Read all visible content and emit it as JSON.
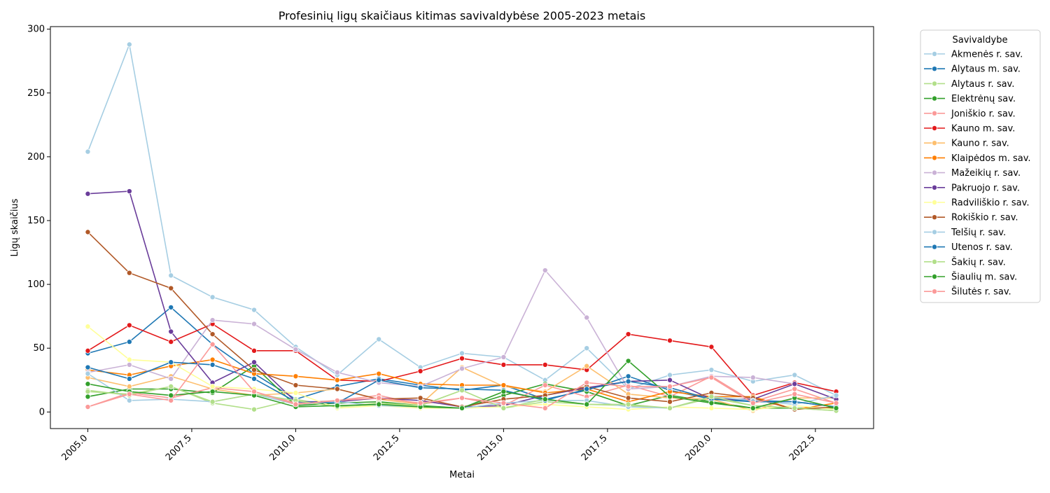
{
  "chart_data": {
    "type": "line",
    "title": "Profesinių ligų skaičiaus kitimas savivaldybėse 2005-2023 metais",
    "xlabel": "Metai",
    "ylabel": "Ligų skaičius",
    "xlim": [
      2004.1,
      2023.9
    ],
    "ylim": [
      -13,
      302
    ],
    "xticks": [
      2005.0,
      2007.5,
      2010.0,
      2012.5,
      2015.0,
      2017.5,
      2020.0,
      2022.5
    ],
    "xtick_labels": [
      "2005.0",
      "2007.5",
      "2010.0",
      "2012.5",
      "2015.0",
      "2017.5",
      "2020.0",
      "2022.5"
    ],
    "yticks": [
      0,
      50,
      100,
      150,
      200,
      250,
      300
    ],
    "ytick_labels": [
      "0",
      "50",
      "100",
      "150",
      "200",
      "250",
      "300"
    ],
    "grid": false,
    "legend": {
      "title": "Savivaldybe",
      "placement": "outside-top-right"
    },
    "x": [
      2005,
      2006,
      2007,
      2008,
      2009,
      2010,
      2011,
      2012,
      2013,
      2014,
      2015,
      2016,
      2017,
      2018,
      2019,
      2020,
      2021,
      2022,
      2023
    ],
    "series": [
      {
        "name": "Akmenės r. sav.",
        "color": "#a6cee3",
        "values": [
          204,
          288,
          107,
          90,
          80,
          51,
          29,
          57,
          35,
          46,
          43,
          25,
          50,
          18,
          29,
          33,
          24,
          29,
          13
        ]
      },
      {
        "name": "Alytaus m. sav.",
        "color": "#1f78b4",
        "values": [
          46,
          55,
          82,
          53,
          30,
          10,
          20,
          26,
          21,
          17,
          21,
          10,
          17,
          28,
          17,
          10,
          9,
          8,
          4
        ]
      },
      {
        "name": "Alytaus r. sav.",
        "color": "#b2df8a",
        "values": [
          17,
          13,
          20,
          7,
          2,
          10,
          4,
          6,
          5,
          17,
          3,
          8,
          6,
          5,
          3,
          11,
          5,
          3,
          1
        ]
      },
      {
        "name": "Elektrėnų sav.",
        "color": "#33a02c",
        "values": [
          12,
          18,
          18,
          15,
          36,
          5,
          7,
          8,
          5,
          3,
          13,
          22,
          16,
          5,
          13,
          8,
          3,
          3,
          3
        ]
      },
      {
        "name": "Joniškio r. sav.",
        "color": "#fb9a99",
        "values": [
          4,
          15,
          11,
          19,
          16,
          7,
          9,
          13,
          6,
          11,
          5,
          21,
          12,
          21,
          12,
          28,
          8,
          18,
          7
        ]
      },
      {
        "name": "Kauno m. sav.",
        "color": "#e31a1c",
        "values": [
          48,
          68,
          55,
          69,
          48,
          48,
          25,
          24,
          32,
          42,
          37,
          37,
          33,
          61,
          56,
          51,
          13,
          23,
          16
        ]
      },
      {
        "name": "Kauno r. sav.",
        "color": "#fdbf6f",
        "values": [
          27,
          20,
          28,
          18,
          13,
          15,
          18,
          10,
          6,
          35,
          20,
          16,
          36,
          14,
          11,
          10,
          1,
          11,
          11
        ]
      },
      {
        "name": "Klaipėdos m. sav.",
        "color": "#ff7f00",
        "values": [
          33,
          29,
          36,
          41,
          30,
          28,
          25,
          30,
          22,
          21,
          21,
          15,
          18,
          8,
          16,
          12,
          12,
          2,
          7
        ]
      },
      {
        "name": "Mažeikių r. sav.",
        "color": "#cab2d6",
        "values": [
          31,
          37,
          26,
          72,
          69,
          49,
          31,
          23,
          20,
          34,
          43,
          111,
          74,
          18,
          20,
          28,
          27,
          22,
          10
        ]
      },
      {
        "name": "Pakruojo r. sav.",
        "color": "#6a3d9a",
        "values": [
          171,
          173,
          63,
          23,
          39,
          8,
          8,
          11,
          9,
          4,
          5,
          13,
          19,
          24,
          25,
          10,
          10,
          22,
          10
        ]
      },
      {
        "name": "Radviliškio r. sav.",
        "color": "#ffff99",
        "values": [
          67,
          41,
          39,
          20,
          18,
          15,
          3,
          5,
          3,
          3,
          4,
          6,
          4,
          2,
          4,
          3,
          2,
          5,
          2
        ]
      },
      {
        "name": "Rokiškio r. sav.",
        "color": "#b15928",
        "values": [
          141,
          109,
          97,
          61,
          33,
          21,
          18,
          10,
          11,
          4,
          10,
          13,
          20,
          11,
          8,
          15,
          11,
          2,
          4
        ]
      },
      {
        "name": "Telšių r. sav.",
        "color": "#a6cee3",
        "values": [
          30,
          9,
          10,
          8,
          14,
          6,
          8,
          5,
          4,
          3,
          7,
          9,
          9,
          4,
          3,
          12,
          9,
          6,
          13
        ]
      },
      {
        "name": "Utenos r. sav.",
        "color": "#1f78b4",
        "values": [
          35,
          26,
          39,
          37,
          26,
          8,
          7,
          25,
          19,
          18,
          17,
          9,
          18,
          24,
          19,
          10,
          8,
          8,
          4
        ]
      },
      {
        "name": "Šakių r. sav.",
        "color": "#b2df8a",
        "values": [
          16,
          14,
          20,
          8,
          14,
          9,
          4,
          7,
          5,
          17,
          3,
          10,
          6,
          6,
          3,
          12,
          5,
          3,
          1
        ]
      },
      {
        "name": "Šiaulių m. sav.",
        "color": "#33a02c",
        "values": [
          22,
          16,
          13,
          16,
          13,
          4,
          5,
          6,
          4,
          3,
          16,
          10,
          6,
          40,
          12,
          7,
          3,
          11,
          3
        ]
      },
      {
        "name": "Šilutės r. sav.",
        "color": "#fb9a99",
        "values": [
          4,
          14,
          9,
          53,
          16,
          6,
          9,
          11,
          7,
          11,
          7,
          3,
          23,
          20,
          20,
          27,
          7,
          14,
          7
        ]
      }
    ]
  }
}
